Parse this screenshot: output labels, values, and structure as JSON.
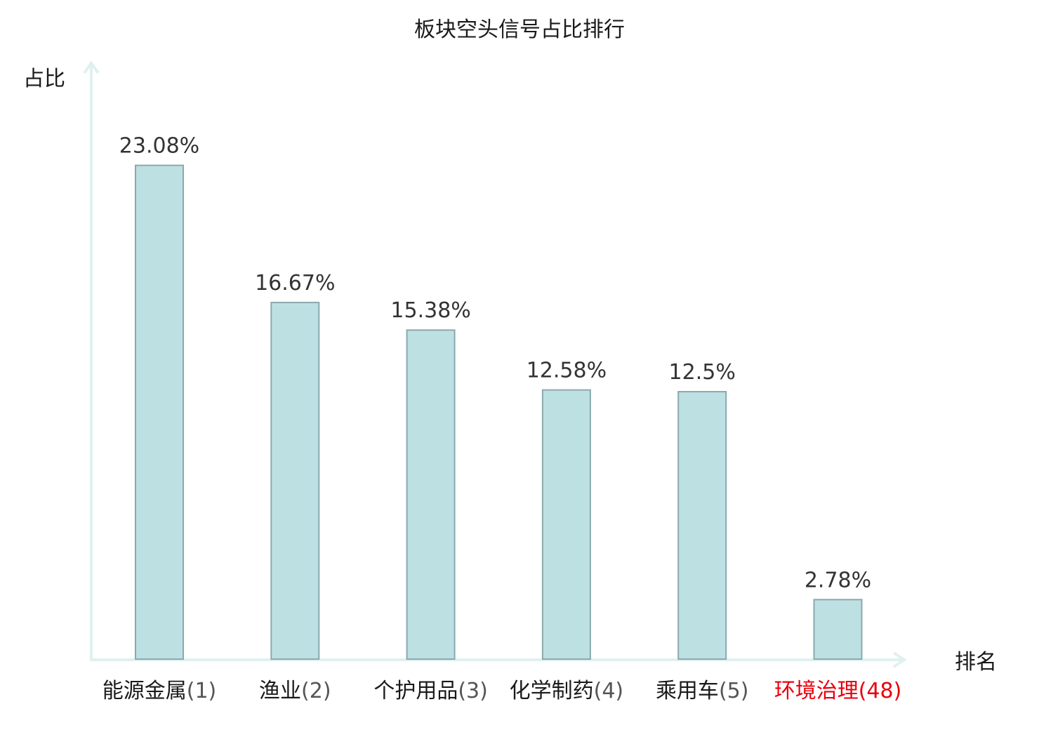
{
  "colors": {
    "bar_fill": "#bde0e3",
    "bar_stroke": "#8aa9ad",
    "axis": "#dff1ef",
    "text": "#1a1a1a",
    "highlight": "#e8000b"
  },
  "chart_data": {
    "type": "bar",
    "title": "板块空头信号占比排行",
    "xlabel": "排名",
    "ylabel": "占比",
    "ylim": [
      0,
      27.2
    ],
    "grid": false,
    "legend": "none",
    "categories": [
      {
        "name": "能源金属",
        "rank": "(1)",
        "highlight": false
      },
      {
        "name": "渔业",
        "rank": "(2)",
        "highlight": false
      },
      {
        "name": "个护用品",
        "rank": "(3)",
        "highlight": false
      },
      {
        "name": "化学制药",
        "rank": "(4)",
        "highlight": false
      },
      {
        "name": "乘用车",
        "rank": "(5)",
        "highlight": false
      },
      {
        "name": "环境治理",
        "rank": "(48)",
        "highlight": true
      }
    ],
    "values": [
      23.08,
      16.67,
      15.38,
      12.58,
      12.5,
      2.78
    ],
    "value_labels": [
      "23.08%",
      "16.67%",
      "15.38%",
      "12.58%",
      "12.5%",
      "2.78%"
    ]
  }
}
